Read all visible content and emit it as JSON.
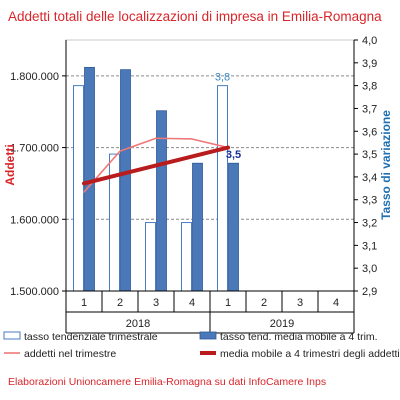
{
  "chart_data": {
    "type": "bar",
    "title": "Addetti totali delle localizzazioni di impresa in Emilia-Romagna",
    "ylabel": "Addetti",
    "y2label": "Tasso di variazione",
    "ylim": [
      1500000,
      1850000
    ],
    "y2lim": [
      2.9,
      4.0
    ],
    "yticks": [
      "1.500.000",
      "1.600.000",
      "1.700.000",
      "1.800.000"
    ],
    "y2ticks": [
      "2,9",
      "3,0",
      "3,1",
      "3,2",
      "3,3",
      "3,4",
      "3,5",
      "3,6",
      "3,7",
      "3,8",
      "3,9",
      "4,0"
    ],
    "grid": true,
    "categories": [
      "1",
      "2",
      "3",
      "4",
      "1",
      "2",
      "3",
      "4"
    ],
    "groups": [
      {
        "label": "2018",
        "span": [
          0,
          3
        ]
      },
      {
        "label": "2019",
        "span": [
          4,
          7
        ]
      }
    ],
    "series": [
      {
        "name": "tasso tendenziale trimestrale",
        "type": "bar",
        "axis": "right",
        "values": [
          3.8,
          3.5,
          3.2,
          3.2,
          3.8,
          null,
          null,
          null
        ]
      },
      {
        "name": "tasso tend. media mobile a 4 trim.",
        "type": "bar",
        "axis": "right",
        "values": [
          3.88,
          3.87,
          3.69,
          3.46,
          3.46,
          null,
          null,
          null
        ]
      },
      {
        "name": "addetti nel trimestre",
        "type": "line",
        "axis": "left",
        "values": [
          1638000,
          1695000,
          1713000,
          1712000,
          1700000,
          null,
          null,
          null
        ]
      },
      {
        "name": "media mobile a 4 trimestri degli addetti",
        "type": "line",
        "axis": "left",
        "values": [
          1650000,
          null,
          null,
          null,
          1700000,
          null,
          null,
          null
        ]
      }
    ],
    "data_labels": [
      {
        "text": "3,8",
        "series": 0,
        "index": 4
      },
      {
        "text": "3,5",
        "series": 1,
        "index": 4
      }
    ],
    "colors": {
      "title": "#d9252a",
      "ylabel": "#d9252a",
      "y2label": "#1f6fb2",
      "bar_outline": "#4a7dc0",
      "bar_fill": "#4a78b8",
      "bar_fill_stroke": "#2e5a96",
      "line_light": "#f07878",
      "line_dark": "#b81c1c",
      "label_light": "#3a86c8",
      "label_dark": "#1a2f9a",
      "source": "#d9252a"
    },
    "legend_position": "bottom",
    "source": "Elaborazioni Unioncamere Emilia-Romagna su dati InfoCamere Inps"
  }
}
